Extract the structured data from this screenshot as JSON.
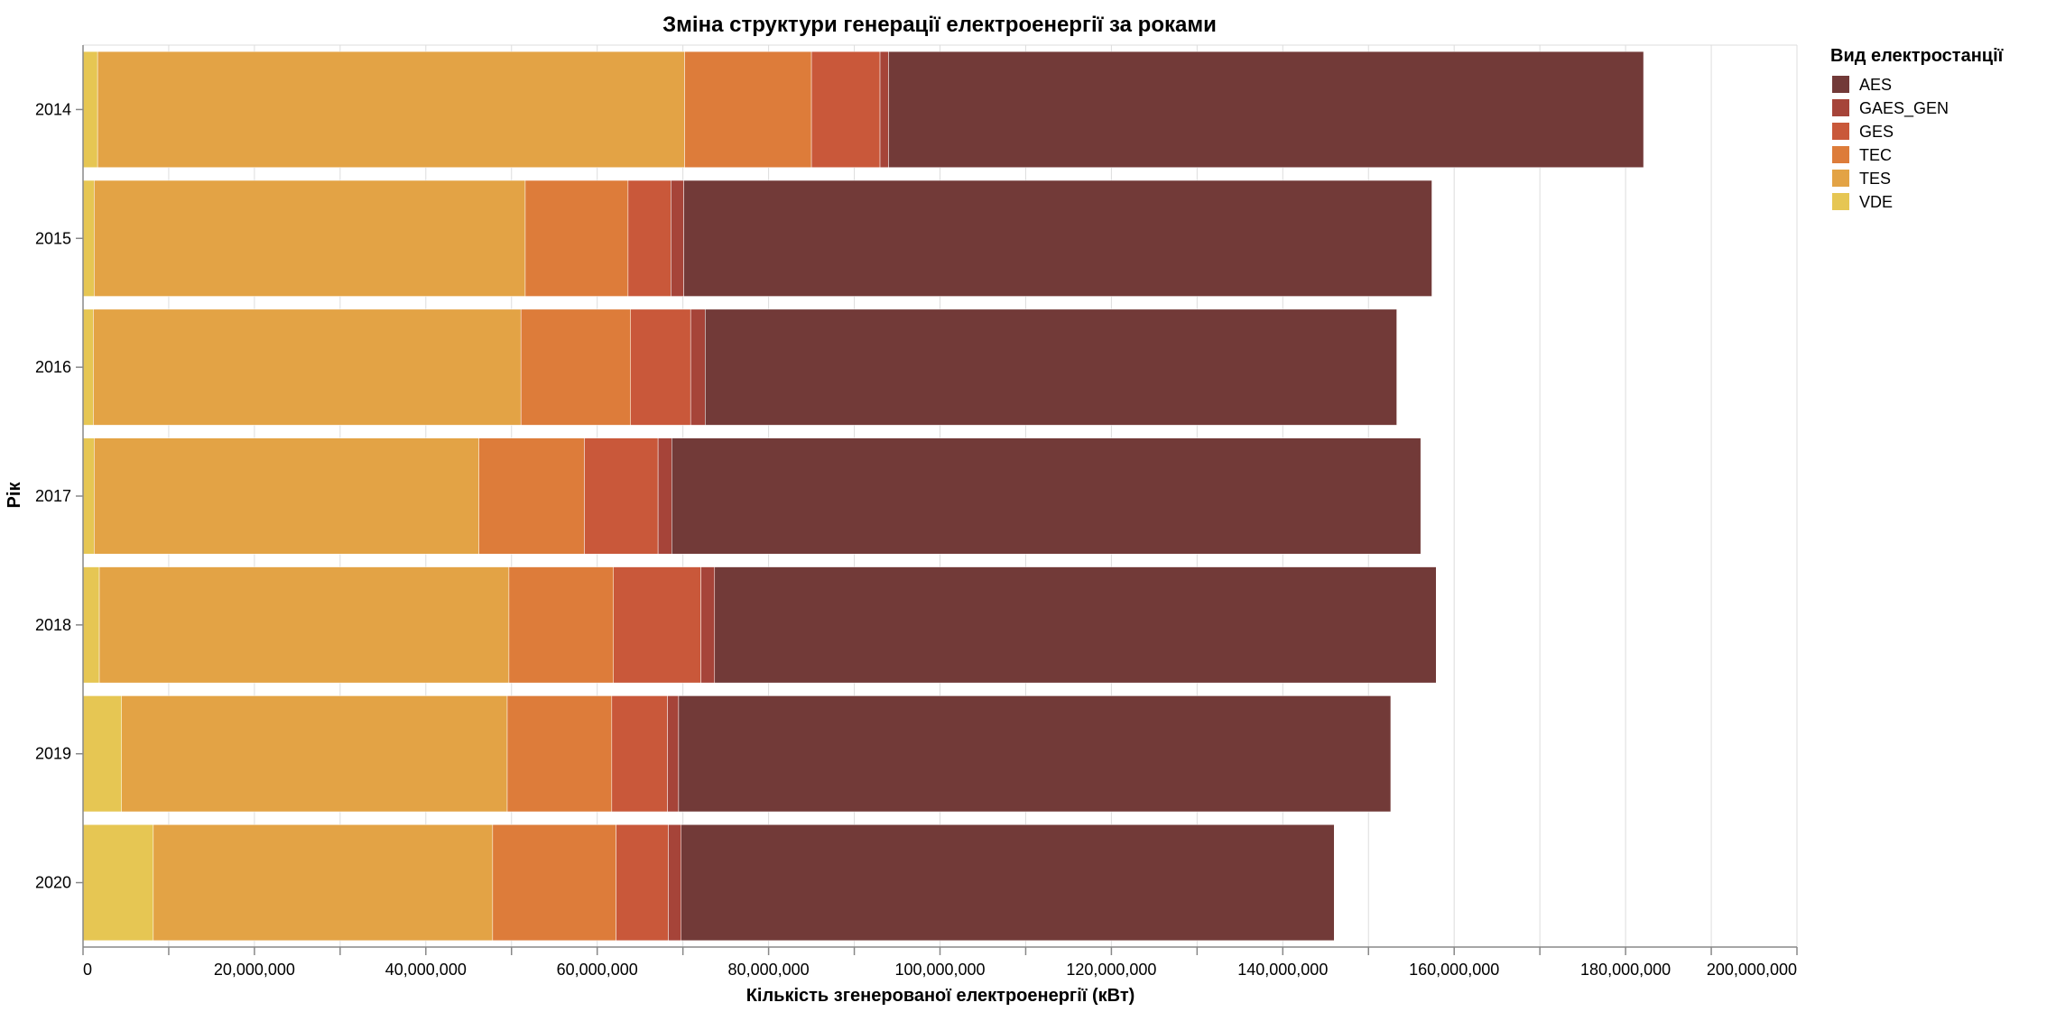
{
  "chart_data": {
    "type": "bar",
    "orientation": "horizontal",
    "stacked": true,
    "title": "Зміна структури генерації електроенергії за роками",
    "xlabel": "Кількість згенерованої електроенергії (кВт)",
    "ylabel": "Рік",
    "xlim": [
      0,
      200000000
    ],
    "x_ticks": [
      "0",
      "20,000,000",
      "40,000,000",
      "60,000,000",
      "80,000,000",
      "100,000,000",
      "120,000,000",
      "140,000,000",
      "160,000,000",
      "180,000,000",
      "200,000,000"
    ],
    "x_tick_values": [
      0,
      20000000,
      40000000,
      60000000,
      80000000,
      100000000,
      120000000,
      140000000,
      160000000,
      180000000,
      200000000
    ],
    "grid": true,
    "categories": [
      "2014",
      "2015",
      "2016",
      "2017",
      "2018",
      "2019",
      "2020"
    ],
    "legend": {
      "title": "Вид електростанції",
      "position": "right"
    },
    "series": [
      {
        "name": "VDE",
        "color": "#e6c653",
        "values": [
          1700000,
          1300000,
          1200000,
          1300000,
          1900000,
          4500000,
          8200000
        ]
      },
      {
        "name": "TES",
        "color": "#e3a345",
        "values": [
          68500000,
          50300000,
          49900000,
          44900000,
          47800000,
          45000000,
          39600000
        ]
      },
      {
        "name": "TEC",
        "color": "#dd7c3a",
        "values": [
          14800000,
          12000000,
          12800000,
          12300000,
          12200000,
          12200000,
          14400000
        ]
      },
      {
        "name": "GES",
        "color": "#c9583a",
        "values": [
          8000000,
          5000000,
          7000000,
          8600000,
          10200000,
          6500000,
          6100000
        ]
      },
      {
        "name": "GAES_GEN",
        "color": "#a64439",
        "values": [
          1000000,
          1500000,
          1700000,
          1600000,
          1600000,
          1300000,
          1500000
        ]
      },
      {
        "name": "AES",
        "color": "#723a38",
        "values": [
          88100000,
          87300000,
          80700000,
          87400000,
          84200000,
          83100000,
          76200000
        ]
      }
    ],
    "legend_order": [
      "AES",
      "GAES_GEN",
      "GES",
      "TEC",
      "TES",
      "VDE"
    ]
  }
}
